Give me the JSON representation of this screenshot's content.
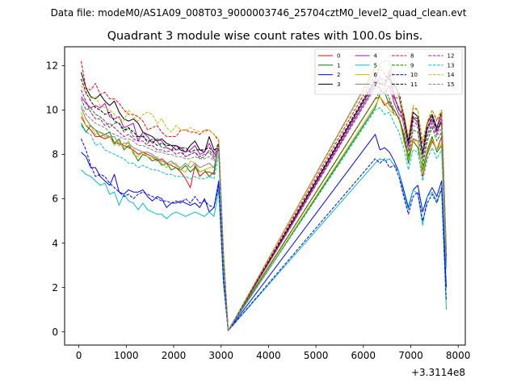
{
  "chart_data": {
    "type": "line",
    "suptitle": "Data file: modeM0/AS1A09_008T03_9000003746_25704cztM0_level2_quad_clean.evt",
    "title": "Quadrant 3 module wise count rates with 100.0s bins.",
    "xlabel": "",
    "ylabel": "",
    "x_offset_label": "+3.3114e8",
    "xlim": [
      -300,
      8150
    ],
    "ylim": [
      -0.6,
      12.85
    ],
    "xticks": [
      0,
      1000,
      2000,
      3000,
      4000,
      5000,
      6000,
      7000,
      8000
    ],
    "yticks": [
      0,
      2,
      4,
      6,
      8,
      10,
      12
    ],
    "legend_position": "top-right",
    "x": [
      50,
      150,
      250,
      350,
      450,
      550,
      650,
      750,
      850,
      950,
      1050,
      1150,
      1250,
      1350,
      1450,
      1550,
      1650,
      1750,
      1850,
      1950,
      2050,
      2150,
      2250,
      2350,
      2450,
      2550,
      2650,
      2750,
      2850,
      2950,
      3050,
      3150,
      6250,
      6350,
      6450,
      6550,
      6650,
      6750,
      6850,
      6950,
      7050,
      7150,
      7250,
      7350,
      7450,
      7550,
      7650,
      7750
    ],
    "series": [
      {
        "name": "0",
        "color": "#ff0000",
        "dash": "solid",
        "values": [
          9.7,
          9.3,
          9.1,
          8.8,
          8.8,
          8.7,
          8.8,
          8.5,
          8.5,
          8.4,
          8.3,
          8.2,
          8.0,
          8.1,
          8.0,
          7.9,
          7.7,
          7.8,
          7.6,
          7.5,
          7.4,
          7.2,
          6.9,
          6.5,
          7.5,
          7.0,
          7.2,
          7.2,
          7.1,
          8.5,
          3.3,
          0.05,
          10.5,
          10.6,
          10.2,
          10.4,
          9.8,
          9.7,
          8.9,
          7.8,
          8.7,
          8.6,
          7.0,
          8.0,
          8.6,
          8.2,
          8.8,
          3.1
        ]
      },
      {
        "name": "1",
        "color": "#008000",
        "dash": "solid",
        "values": [
          9.4,
          9.0,
          9.3,
          9.1,
          8.8,
          8.9,
          9.0,
          8.5,
          8.7,
          8.2,
          8.4,
          8.1,
          7.7,
          8.0,
          7.9,
          7.7,
          7.8,
          7.5,
          7.6,
          7.3,
          7.4,
          7.3,
          7.5,
          7.2,
          7.4,
          7.2,
          7.3,
          7.0,
          7.2,
          8.4,
          3.0,
          0.05,
          10.1,
          10.7,
          10.8,
          10.2,
          10.0,
          9.6,
          8.8,
          7.6,
          8.6,
          8.3,
          7.3,
          8.2,
          8.8,
          8.1,
          8.4,
          3.1
        ]
      },
      {
        "name": "2",
        "color": "#0000ff",
        "dash": "solid",
        "values": [
          8.1,
          7.9,
          7.4,
          7.4,
          7.0,
          6.8,
          6.6,
          7.1,
          6.3,
          6.2,
          6.4,
          6.3,
          6.3,
          6.4,
          6.1,
          5.9,
          6.1,
          6.0,
          5.6,
          5.8,
          5.8,
          5.9,
          5.8,
          5.7,
          5.8,
          5.6,
          6.0,
          5.4,
          5.6,
          6.8,
          2.3,
          0.05,
          8.9,
          8.2,
          8.3,
          8.1,
          7.7,
          7.2,
          6.4,
          5.6,
          6.4,
          6.6,
          5.4,
          6.1,
          6.5,
          6.1,
          6.8,
          2.0
        ]
      },
      {
        "name": "3",
        "color": "#000000",
        "dash": "solid",
        "values": [
          11.7,
          11.0,
          10.6,
          10.5,
          10.7,
          10.4,
          10.2,
          10.4,
          9.9,
          9.6,
          9.5,
          9.6,
          9.4,
          9.0,
          8.9,
          8.8,
          8.6,
          8.7,
          8.5,
          8.4,
          8.4,
          8.2,
          8.1,
          8.4,
          8.6,
          8.2,
          8.1,
          8.8,
          8.2,
          8.3,
          3.5,
          0.05,
          11.3,
          11.2,
          11.1,
          11.6,
          10.6,
          10.0,
          9.8,
          8.6,
          9.9,
          9.7,
          8.1,
          9.4,
          9.8,
          9.2,
          9.9,
          3.5
        ]
      },
      {
        "name": "4",
        "color": "#bf00bf",
        "dash": "solid",
        "values": [
          10.6,
          10.3,
          10.1,
          10.2,
          10.1,
          10.3,
          9.7,
          9.6,
          9.7,
          9.2,
          9.3,
          9.4,
          8.6,
          9.0,
          8.8,
          8.5,
          8.7,
          8.6,
          8.3,
          8.2,
          8.4,
          8.3,
          8.1,
          8.2,
          8.4,
          8.0,
          8.1,
          8.5,
          8.0,
          8.3,
          3.2,
          0.05,
          11.1,
          11.0,
          10.7,
          11.1,
          10.3,
          9.8,
          9.6,
          8.4,
          9.7,
          9.4,
          8.0,
          9.1,
          9.6,
          9.0,
          9.7,
          3.3
        ]
      },
      {
        "name": "5",
        "color": "#00bfbf",
        "dash": "solid",
        "values": [
          7.3,
          7.1,
          7.0,
          6.8,
          6.6,
          6.7,
          6.2,
          6.3,
          5.7,
          6.2,
          5.9,
          5.8,
          5.5,
          5.8,
          5.5,
          5.4,
          5.3,
          5.3,
          5.1,
          5.3,
          5.4,
          5.3,
          5.2,
          5.3,
          5.4,
          5.3,
          5.2,
          5.4,
          5.2,
          6.4,
          2.2,
          0.05,
          7.6,
          7.8,
          7.7,
          7.8,
          7.5,
          7.2,
          6.2,
          5.5,
          6.4,
          6.2,
          4.8,
          6.1,
          6.3,
          5.9,
          6.4,
          1.0
        ]
      },
      {
        "name": "6",
        "color": "#bfbf00",
        "dash": "solid",
        "values": [
          9.9,
          9.3,
          9.3,
          8.9,
          9.0,
          8.8,
          8.8,
          8.4,
          8.6,
          8.3,
          8.6,
          8.0,
          7.9,
          8.1,
          7.9,
          7.8,
          7.9,
          7.6,
          7.4,
          7.6,
          7.6,
          7.3,
          7.2,
          7.7,
          7.6,
          7.2,
          7.3,
          7.4,
          7.4,
          8.4,
          3.1,
          0.05,
          10.2,
          10.6,
          10.3,
          10.0,
          9.8,
          9.7,
          8.6,
          7.8,
          8.6,
          8.6,
          7.1,
          8.1,
          8.7,
          8.2,
          8.5,
          3.0
        ]
      },
      {
        "name": "7",
        "color": "#808080",
        "dash": "solid",
        "values": [
          10.1,
          9.6,
          9.3,
          9.1,
          9.0,
          8.9,
          8.8,
          8.8,
          8.4,
          8.5,
          8.5,
          8.3,
          8.2,
          8.1,
          8.1,
          8.0,
          7.8,
          7.7,
          7.6,
          7.7,
          7.5,
          7.4,
          7.6,
          7.4,
          7.6,
          7.4,
          7.5,
          7.6,
          7.4,
          8.4,
          3.2,
          0.05,
          11.9,
          12.1,
          12.2,
          12.2,
          11.3,
          10.6,
          9.6,
          8.5,
          9.6,
          9.5,
          8.1,
          9.1,
          9.5,
          9.1,
          9.4,
          3.4
        ]
      },
      {
        "name": "8",
        "color": "#ff0000",
        "dash": "dashed",
        "values": [
          12.2,
          11.0,
          10.9,
          11.2,
          10.7,
          10.8,
          10.5,
          10.5,
          10.3,
          10.0,
          9.8,
          9.8,
          9.7,
          9.5,
          9.1,
          9.2,
          9.3,
          9.0,
          8.8,
          8.8,
          8.8,
          9.1,
          9.1,
          9.0,
          9.0,
          8.9,
          9.1,
          9.1,
          8.9,
          8.6,
          3.6,
          0.05,
          11.6,
          11.1,
          11.3,
          11.8,
          10.5,
          10.6,
          9.6,
          8.5,
          10.1,
          10.0,
          8.5,
          9.4,
          10.0,
          9.5,
          10.0,
          3.7
        ]
      },
      {
        "name": "9",
        "color": "#008000",
        "dash": "dashed",
        "values": [
          10.5,
          10.0,
          10.1,
          9.8,
          9.7,
          9.5,
          9.2,
          9.4,
          9.4,
          9.0,
          9.2,
          8.8,
          8.8,
          8.9,
          8.5,
          8.7,
          8.6,
          8.3,
          8.3,
          8.2,
          8.2,
          8.2,
          7.9,
          8.0,
          8.1,
          7.8,
          7.9,
          8.2,
          7.9,
          8.2,
          3.3,
          0.05,
          10.5,
          10.8,
          11.0,
          10.5,
          10.0,
          9.6,
          9.0,
          7.9,
          9.1,
          9.0,
          7.5,
          8.6,
          9.2,
          8.6,
          9.0,
          3.2
        ]
      },
      {
        "name": "10",
        "color": "#0000ff",
        "dash": "dashed",
        "values": [
          8.7,
          8.2,
          7.5,
          7.0,
          7.1,
          7.0,
          6.7,
          6.5,
          6.3,
          6.1,
          6.2,
          6.0,
          6.2,
          6.3,
          6.2,
          6.1,
          6.0,
          5.9,
          5.9,
          5.8,
          5.9,
          5.8,
          6.0,
          5.8,
          6.1,
          5.8,
          5.9,
          5.7,
          5.6,
          6.6,
          2.3,
          0.05,
          7.8,
          7.6,
          7.8,
          7.4,
          7.5,
          7.0,
          6.1,
          5.3,
          6.1,
          6.3,
          5.0,
          5.8,
          6.2,
          5.8,
          6.5,
          1.4
        ]
      },
      {
        "name": "11",
        "color": "#000000",
        "dash": "dashed",
        "values": [
          11.4,
          10.8,
          10.4,
          10.1,
          10.0,
          9.8,
          9.9,
          9.5,
          9.4,
          9.1,
          9.2,
          9.0,
          8.8,
          8.8,
          8.6,
          8.6,
          8.4,
          8.5,
          8.4,
          8.4,
          8.2,
          8.3,
          8.3,
          8.1,
          8.2,
          8.2,
          8.2,
          8.3,
          8.1,
          8.5,
          3.4,
          0.05,
          11.4,
          12.0,
          11.6,
          11.4,
          11.1,
          10.8,
          9.8,
          8.5,
          9.7,
          9.6,
          8.0,
          9.2,
          9.7,
          9.1,
          9.5,
          3.4
        ]
      },
      {
        "name": "12",
        "color": "#bf00bf",
        "dash": "dashed",
        "values": [
          10.9,
          10.4,
          9.9,
          9.6,
          9.6,
          9.3,
          9.4,
          9.2,
          9.0,
          8.8,
          8.9,
          8.7,
          8.6,
          8.6,
          8.4,
          8.4,
          8.2,
          8.2,
          8.1,
          8.2,
          8.0,
          8.1,
          7.9,
          8.0,
          8.1,
          7.9,
          8.0,
          8.1,
          7.8,
          8.3,
          3.3,
          0.05,
          11.2,
          11.5,
          11.3,
          11.4,
          10.6,
          10.1,
          9.5,
          8.2,
          9.5,
          9.3,
          7.8,
          8.9,
          9.4,
          8.9,
          9.5,
          3.3
        ]
      },
      {
        "name": "13",
        "color": "#00bfbf",
        "dash": "dashed",
        "values": [
          9.3,
          9.0,
          8.9,
          8.4,
          8.5,
          8.2,
          8.1,
          8.0,
          7.9,
          7.8,
          7.6,
          7.6,
          7.4,
          7.5,
          7.4,
          7.3,
          7.3,
          7.2,
          7.1,
          7.1,
          7.0,
          7.0,
          7.0,
          6.9,
          7.0,
          6.9,
          6.9,
          7.0,
          6.9,
          8.0,
          2.9,
          0.05,
          10.0,
          10.1,
          9.8,
          9.9,
          9.4,
          9.0,
          8.3,
          7.3,
          8.2,
          8.1,
          6.8,
          7.8,
          8.3,
          7.8,
          8.2,
          2.8
        ]
      },
      {
        "name": "14",
        "color": "#bfbf00",
        "dash": "dashed",
        "values": [
          11.1,
          10.7,
          10.5,
          10.6,
          10.2,
          10.1,
          10.0,
          9.8,
          9.6,
          9.5,
          10.0,
          9.7,
          9.5,
          9.8,
          9.9,
          9.8,
          9.4,
          9.6,
          9.2,
          9.0,
          9.3,
          9.1,
          9.1,
          9.2,
          9.1,
          9.0,
          9.0,
          9.1,
          8.9,
          8.7,
          3.7,
          0.05,
          11.8,
          12.0,
          11.6,
          11.5,
          11.0,
          10.6,
          9.9,
          8.8,
          10.2,
          10.0,
          8.6,
          9.5,
          10.0,
          9.6,
          10.0,
          3.6
        ]
      },
      {
        "name": "15",
        "color": "#808080",
        "dash": "dashed",
        "values": [
          10.2,
          9.8,
          9.6,
          9.4,
          9.3,
          9.2,
          9.0,
          8.9,
          8.8,
          8.7,
          8.7,
          8.6,
          8.4,
          8.4,
          8.3,
          8.2,
          8.1,
          8.1,
          8.0,
          8.0,
          7.9,
          7.9,
          7.8,
          7.8,
          7.9,
          7.8,
          7.8,
          7.9,
          7.7,
          8.3,
          3.2,
          0.05,
          11.0,
          11.4,
          11.2,
          11.0,
          10.5,
          10.1,
          9.3,
          8.1,
          9.3,
          9.2,
          7.7,
          8.8,
          9.3,
          8.8,
          9.2,
          3.2
        ]
      }
    ]
  }
}
